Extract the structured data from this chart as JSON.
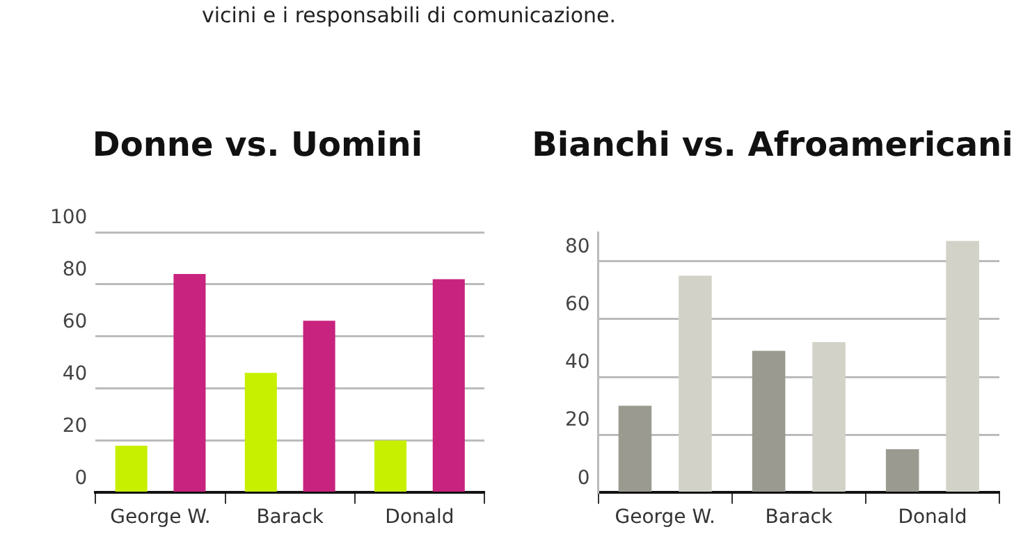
{
  "chart_data": [
    {
      "type": "bar",
      "title": "Donne vs. Uomini",
      "annotations": [
        "vicini e i responsabili di comunicazione."
      ],
      "categories": [
        "George W.",
        "Barack",
        "Donald"
      ],
      "series": [
        {
          "color": "#c6f000",
          "values": [
            18,
            46,
            20
          ]
        },
        {
          "color": "#c8237e",
          "values": [
            84,
            66,
            82
          ]
        }
      ],
      "ylim": [
        0,
        100
      ],
      "yticks": [
        0,
        20,
        40,
        60,
        80,
        100
      ],
      "grid": "y",
      "legend": false
    },
    {
      "type": "bar",
      "title": "Bianchi vs. Afroamericani",
      "categories": [
        "George W.",
        "Barack",
        "Donald"
      ],
      "series": [
        {
          "color": "#9a9a90",
          "values": [
            30,
            49,
            15
          ]
        },
        {
          "color": "#d2d2c8",
          "values": [
            75,
            52,
            87
          ]
        }
      ],
      "ylim": [
        0,
        90
      ],
      "yticks": [
        0,
        20,
        40,
        60,
        80
      ],
      "grid": "y",
      "legend": false
    }
  ]
}
